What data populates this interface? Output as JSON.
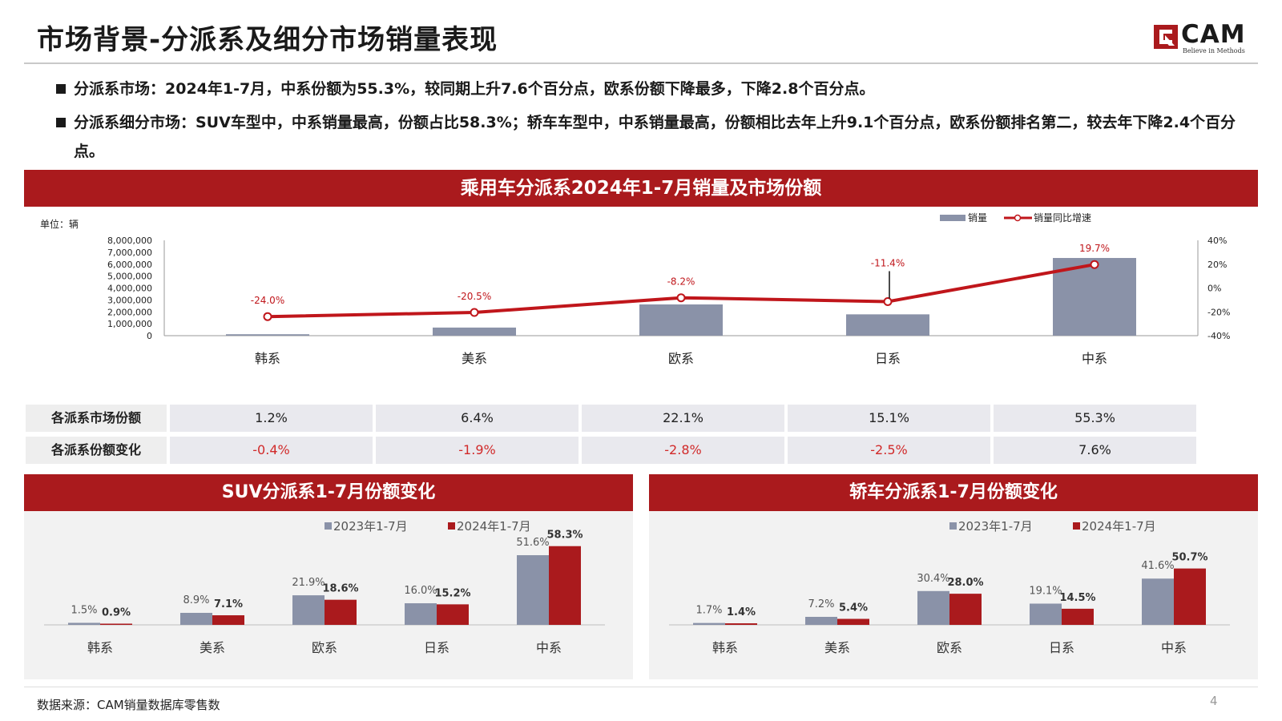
{
  "page": {
    "title": "市场背景-分派系及细分市场销量表现",
    "logo_text": "CAM",
    "logo_tagline": "Believe in Methods",
    "bullets": [
      "分派系市场：2024年1-7月，中系份额为55.3%，较同期上升7.6个百分点，欧系份额下降最多，下降2.8个百分点。",
      "分派系细分市场：SUV车型中，中系销量最高，份额占比58.3%；轿车车型中，中系销量最高，份额相比去年上升9.1个百分点，欧系份额排名第二，较去年下降2.4个百分点。"
    ],
    "footer_source": "数据来源：CAM销量数据库零售数",
    "page_number": "4"
  },
  "colors": {
    "brand_red": "#aa1a1d",
    "bar_gray": "#8a92a8",
    "line_red": "#c0161b",
    "negative_text": "#d12a2a"
  },
  "table": {
    "row_labels": [
      "各派系市场份额",
      "各派系份额变化"
    ],
    "share": [
      "1.2%",
      "6.4%",
      "22.1%",
      "15.1%",
      "55.3%"
    ],
    "change": [
      "-0.4%",
      "-1.9%",
      "-2.8%",
      "-2.5%",
      "7.6%"
    ]
  },
  "chart_data": [
    {
      "type": "bar",
      "title": "乘用车分派系2024年1-7月销量及市场份额",
      "unit_label": "单位：辆",
      "categories": [
        "韩系",
        "美系",
        "欧系",
        "日系",
        "中系"
      ],
      "series": [
        {
          "name": "销量",
          "kind": "bar",
          "values": [
            120000,
            680000,
            2620000,
            1790000,
            6520000
          ]
        },
        {
          "name": "销量同比增速",
          "kind": "line",
          "values": [
            -24.0,
            -20.5,
            -8.2,
            -11.4,
            19.7
          ],
          "labels": [
            "-24.0%",
            "-20.5%",
            "-8.2%",
            "-11.4%",
            "19.7%"
          ]
        }
      ],
      "ylim": [
        0,
        8000000
      ],
      "yticks": [
        "0",
        "1,000,000",
        "2,000,000",
        "3,000,000",
        "4,000,000",
        "5,000,000",
        "6,000,000",
        "7,000,000",
        "8,000,000"
      ],
      "y2lim": [
        -40,
        40
      ],
      "y2ticks": [
        "40%",
        "20%",
        "0%",
        "-20%",
        "-40%"
      ],
      "legend": "top-right",
      "grid": false
    },
    {
      "type": "bar",
      "title": "SUV分派系1-7月份额变化",
      "categories": [
        "韩系",
        "美系",
        "欧系",
        "日系",
        "中系"
      ],
      "series": [
        {
          "name": "2023年1-7月",
          "values": [
            1.5,
            8.9,
            21.9,
            16.0,
            51.6
          ],
          "labels": [
            "1.5%",
            "8.9%",
            "21.9%",
            "16.0%",
            "51.6%"
          ]
        },
        {
          "name": "2024年1-7月",
          "values": [
            0.9,
            7.1,
            18.6,
            15.2,
            58.3
          ],
          "labels": [
            "0.9%",
            "7.1%",
            "18.6%",
            "15.2%",
            "58.3%"
          ]
        }
      ],
      "ylim": [
        0,
        70
      ],
      "legend": "top-center",
      "grid": false
    },
    {
      "type": "bar",
      "title": "轿车分派系1-7月份额变化",
      "categories": [
        "韩系",
        "美系",
        "欧系",
        "日系",
        "中系"
      ],
      "series": [
        {
          "name": "2023年1-7月",
          "values": [
            1.7,
            7.2,
            30.4,
            19.1,
            41.6
          ],
          "labels": [
            "1.7%",
            "7.2%",
            "30.4%",
            "19.1%",
            "41.6%"
          ]
        },
        {
          "name": "2024年1-7月",
          "values": [
            1.4,
            5.4,
            28.0,
            14.5,
            50.7
          ],
          "labels": [
            "1.4%",
            "5.4%",
            "28.0%",
            "14.5%",
            "50.7%"
          ]
        }
      ],
      "ylim": [
        0,
        85
      ],
      "legend": "top-center",
      "grid": false
    }
  ]
}
